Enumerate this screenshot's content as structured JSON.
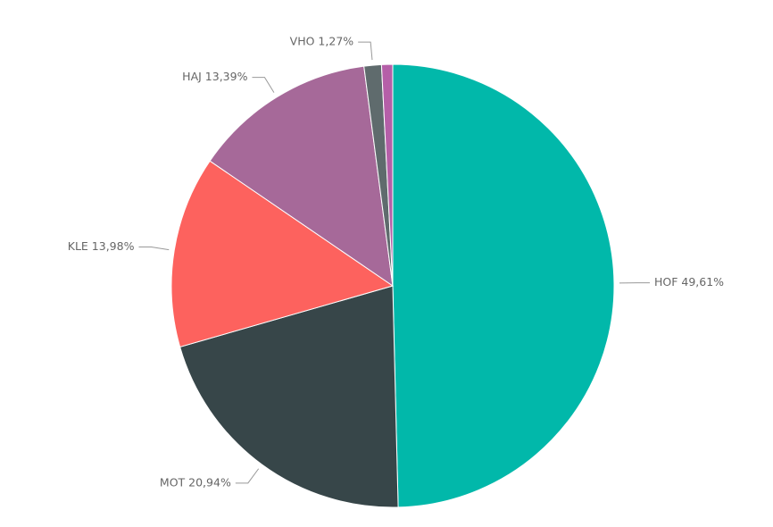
{
  "chart_data": {
    "type": "pie",
    "categories": [
      "HOF",
      "MOT",
      "KLE",
      "HAJ",
      "VHO",
      null
    ],
    "values": [
      49.61,
      20.94,
      13.98,
      13.39,
      1.27,
      0.81
    ],
    "value_labels": [
      "HOF 49,61%",
      "MOT 20,94%",
      "KLE 13,98%",
      "HAJ 13,39%",
      "VHO 1,27%",
      null
    ],
    "colors": [
      "#01b8aa",
      "#374649",
      "#fd625e",
      "#a66999",
      "#5f6b6d",
      "#b55fa8"
    ]
  }
}
